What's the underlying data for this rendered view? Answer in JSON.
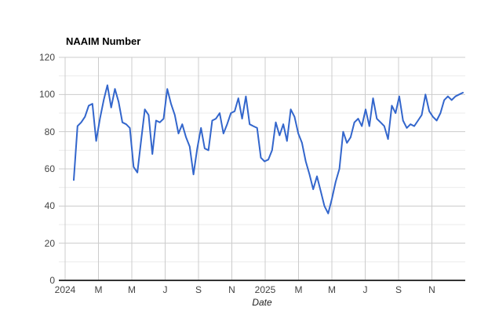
{
  "chart_data": {
    "type": "line",
    "title": "NAAIM Number",
    "xlabel": "Date",
    "ylabel": "",
    "ylim": [
      0,
      120
    ],
    "y_ticks": [
      0,
      20,
      40,
      60,
      80,
      100,
      120
    ],
    "y_minor_grid_step": 10,
    "x_tick_labels": [
      "2024",
      "M",
      "M",
      "J",
      "S",
      "N",
      "2025",
      "M",
      "M",
      "J",
      "S",
      "N"
    ],
    "grid": "on",
    "legend": "none",
    "series": [
      {
        "name": "NAAIM Number",
        "color": "#3366cc",
        "values": [
          54,
          83,
          85,
          88,
          94,
          95,
          75,
          87,
          97,
          105,
          93,
          103,
          96,
          85,
          84,
          82,
          61,
          58,
          75,
          92,
          89,
          68,
          86,
          85,
          87,
          103,
          95,
          89,
          79,
          84,
          77,
          72,
          57,
          71,
          82,
          71,
          70,
          86,
          87,
          90,
          79,
          84,
          90,
          91,
          98,
          87,
          99,
          84,
          83,
          82,
          66,
          64,
          65,
          70,
          85,
          78,
          84,
          75,
          92,
          88,
          79,
          74,
          64,
          57,
          49,
          56,
          48,
          40,
          36,
          44,
          53,
          60,
          80,
          74,
          77,
          85,
          87,
          83,
          92,
          83,
          98,
          87,
          85,
          83,
          76,
          94,
          90,
          99,
          86,
          82,
          84,
          83,
          86,
          89,
          100,
          91,
          88,
          86,
          90,
          97,
          99,
          97,
          99,
          100,
          101
        ]
      }
    ]
  },
  "colors": {
    "line": "#3366cc",
    "grid_major": "#cccccc",
    "grid_minor": "#ebebeb",
    "axis_baseline": "#333333",
    "tick_label": "#444444",
    "title": "#000000",
    "background": "#ffffff"
  }
}
